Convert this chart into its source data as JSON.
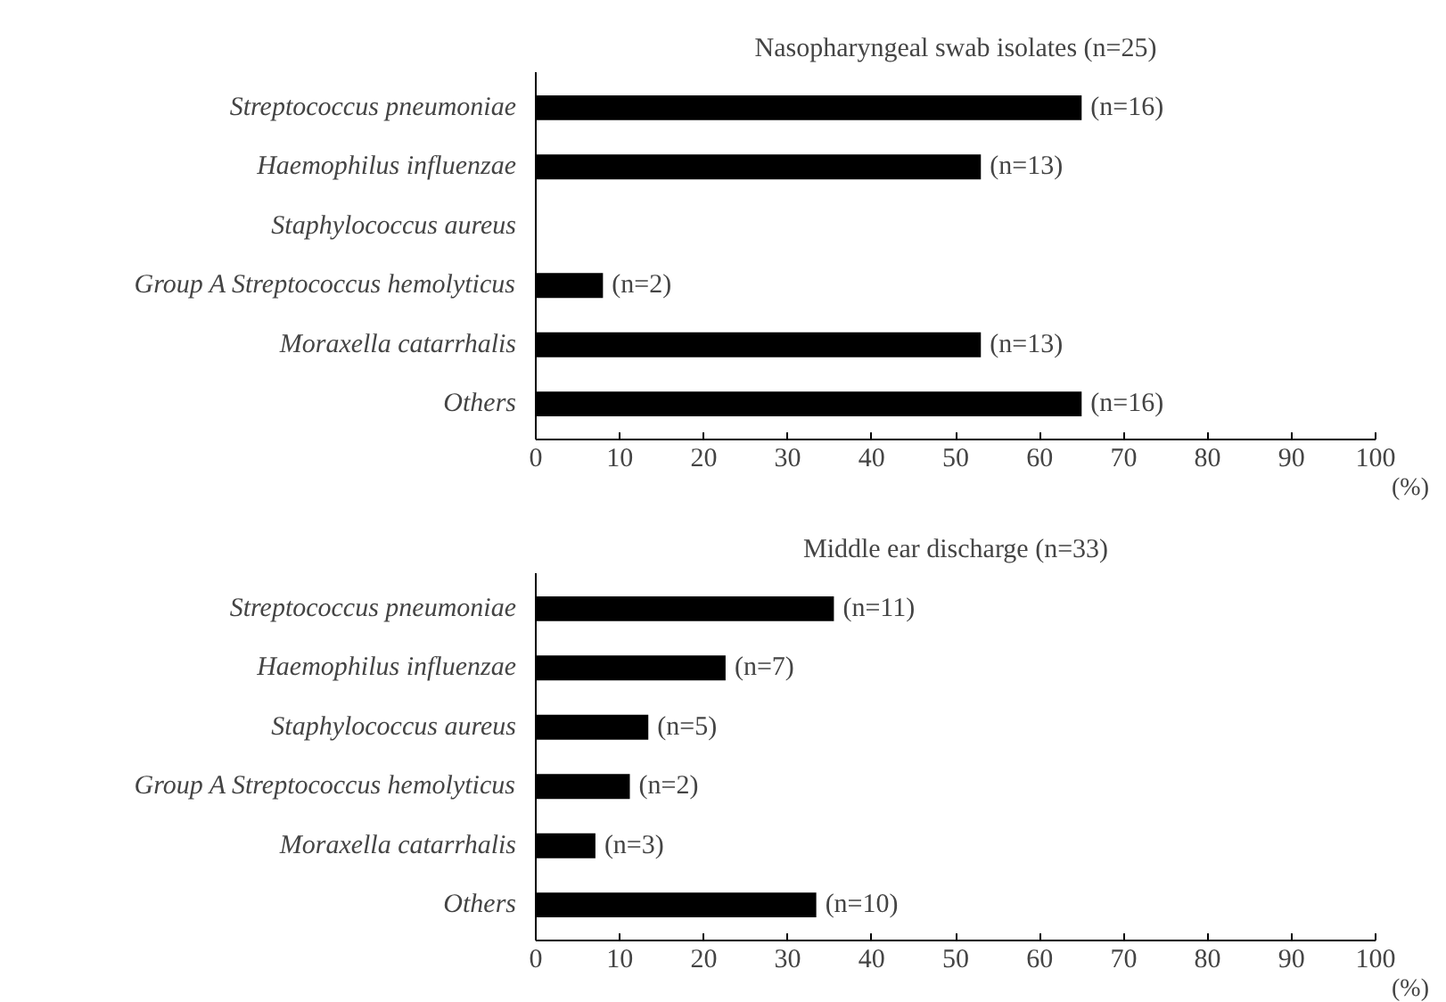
{
  "chart_data": [
    {
      "type": "bar",
      "orientation": "horizontal",
      "title": "Nasopharyngeal swab isolates (n=25)",
      "xlabel": "(%)",
      "categories": [
        "Streptococcus pneumoniae",
        "Haemophilus influenzae",
        "Staphylococcus aureus",
        "Group A Streptococcus hemolyticus",
        "Moraxella catarrhalis",
        "Others"
      ],
      "values": [
        65,
        53,
        0,
        8,
        53,
        65
      ],
      "color": "#000000",
      "annotations": [
        {
          "text": "(n=16)",
          "x": 65,
          "y": "Streptococcus pneumoniae"
        },
        {
          "text": "(n=13)",
          "x": 53,
          "y": "Haemophilus influenzae"
        },
        {
          "text": "(n=2)",
          "x": 8,
          "y": "Group A Streptococcus hemolyticus"
        },
        {
          "text": "(n=13)",
          "x": 53,
          "y": "Moraxella catarrhalis"
        },
        {
          "text": "(n=16)",
          "x": 65,
          "y": "Others"
        }
      ],
      "xlim": [
        0,
        100
      ],
      "xticks": [
        0,
        10,
        20,
        30,
        40,
        50,
        60,
        70,
        80,
        90,
        100
      ],
      "grid": false
    },
    {
      "type": "bar",
      "orientation": "horizontal",
      "title": "Middle ear discharge (n=33)",
      "xlabel": "(%)",
      "categories": [
        "Streptococcus pneumoniae",
        "Haemophilus influenzae",
        "Staphylococcus aureus",
        "Group A Streptococcus hemolyticus",
        "Moraxella catarrhalis",
        "Others"
      ],
      "values": [
        35.5,
        22.6,
        13.4,
        11.2,
        7.1,
        33.4
      ],
      "color": "#000000",
      "annotations": [
        {
          "text": "(n=11)",
          "x": 35.5,
          "y": "Streptococcus pneumoniae"
        },
        {
          "text": "(n=7)",
          "x": 22.6,
          "y": "Haemophilus influenzae"
        },
        {
          "text": "(n=5)",
          "x": 13.4,
          "y": "Staphylococcus aureus"
        },
        {
          "text": "(n=2)",
          "x": 11.2,
          "y": "Group A Streptococcus hemolyticus"
        },
        {
          "text": "(n=3)",
          "x": 7.1,
          "y": "Moraxella catarrhalis"
        },
        {
          "text": "(n=10)",
          "x": 33.4,
          "y": "Others"
        }
      ],
      "xlim": [
        0,
        100
      ],
      "xticks": [
        0,
        10,
        20,
        30,
        40,
        50,
        60,
        70,
        80,
        90,
        100
      ],
      "grid": false
    }
  ]
}
